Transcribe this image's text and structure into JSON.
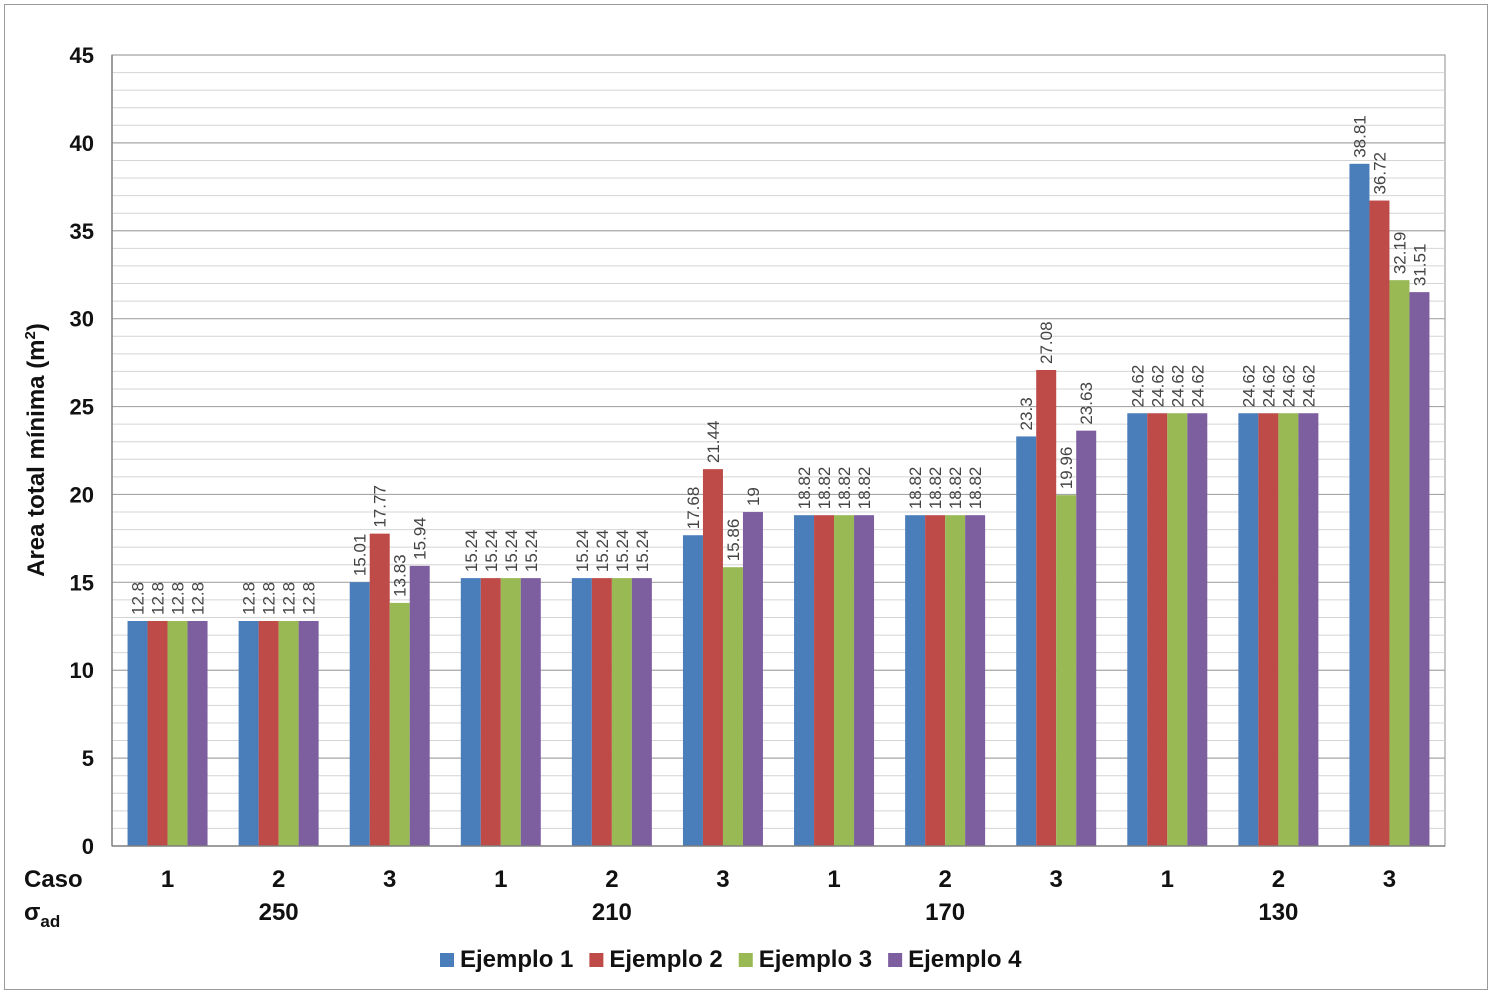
{
  "chart_data": {
    "type": "bar",
    "title": "",
    "ylabel": "Area total mínima (m²)",
    "ylabel_parts": {
      "base": "Area total mínima (m",
      "sup": "2",
      "close": ")"
    },
    "ylim": [
      0,
      45
    ],
    "yticks": [
      0,
      5,
      10,
      15,
      20,
      25,
      30,
      35,
      40,
      45
    ],
    "grid": true,
    "row_labels": {
      "caso": "Caso",
      "sigma": "σ",
      "sigma_sub": "ad"
    },
    "categories": [
      "1",
      "2",
      "3",
      "1",
      "2",
      "3",
      "1",
      "2",
      "3",
      "1",
      "2",
      "3"
    ],
    "groups": [
      "250",
      "210",
      "170",
      "130"
    ],
    "series": [
      {
        "name": "Ejemplo 1",
        "color": "#4a7ebb",
        "values": [
          12.8,
          12.8,
          15.01,
          15.24,
          15.24,
          17.68,
          18.82,
          18.82,
          23.3,
          24.62,
          24.62,
          38.81
        ]
      },
      {
        "name": "Ejemplo 2",
        "color": "#be4b48",
        "values": [
          12.8,
          12.8,
          17.77,
          15.24,
          15.24,
          21.44,
          18.82,
          18.82,
          27.08,
          24.62,
          24.62,
          36.72
        ]
      },
      {
        "name": "Ejemplo 3",
        "color": "#98b954",
        "values": [
          12.8,
          12.8,
          13.83,
          15.24,
          15.24,
          15.86,
          18.82,
          18.82,
          19.96,
          24.62,
          24.62,
          32.19
        ]
      },
      {
        "name": "Ejemplo 4",
        "color": "#7d5fa0",
        "values": [
          12.8,
          12.8,
          15.94,
          15.24,
          15.24,
          19,
          18.82,
          18.82,
          23.63,
          24.62,
          24.62,
          31.51
        ]
      }
    ],
    "legend_position": "bottom"
  }
}
